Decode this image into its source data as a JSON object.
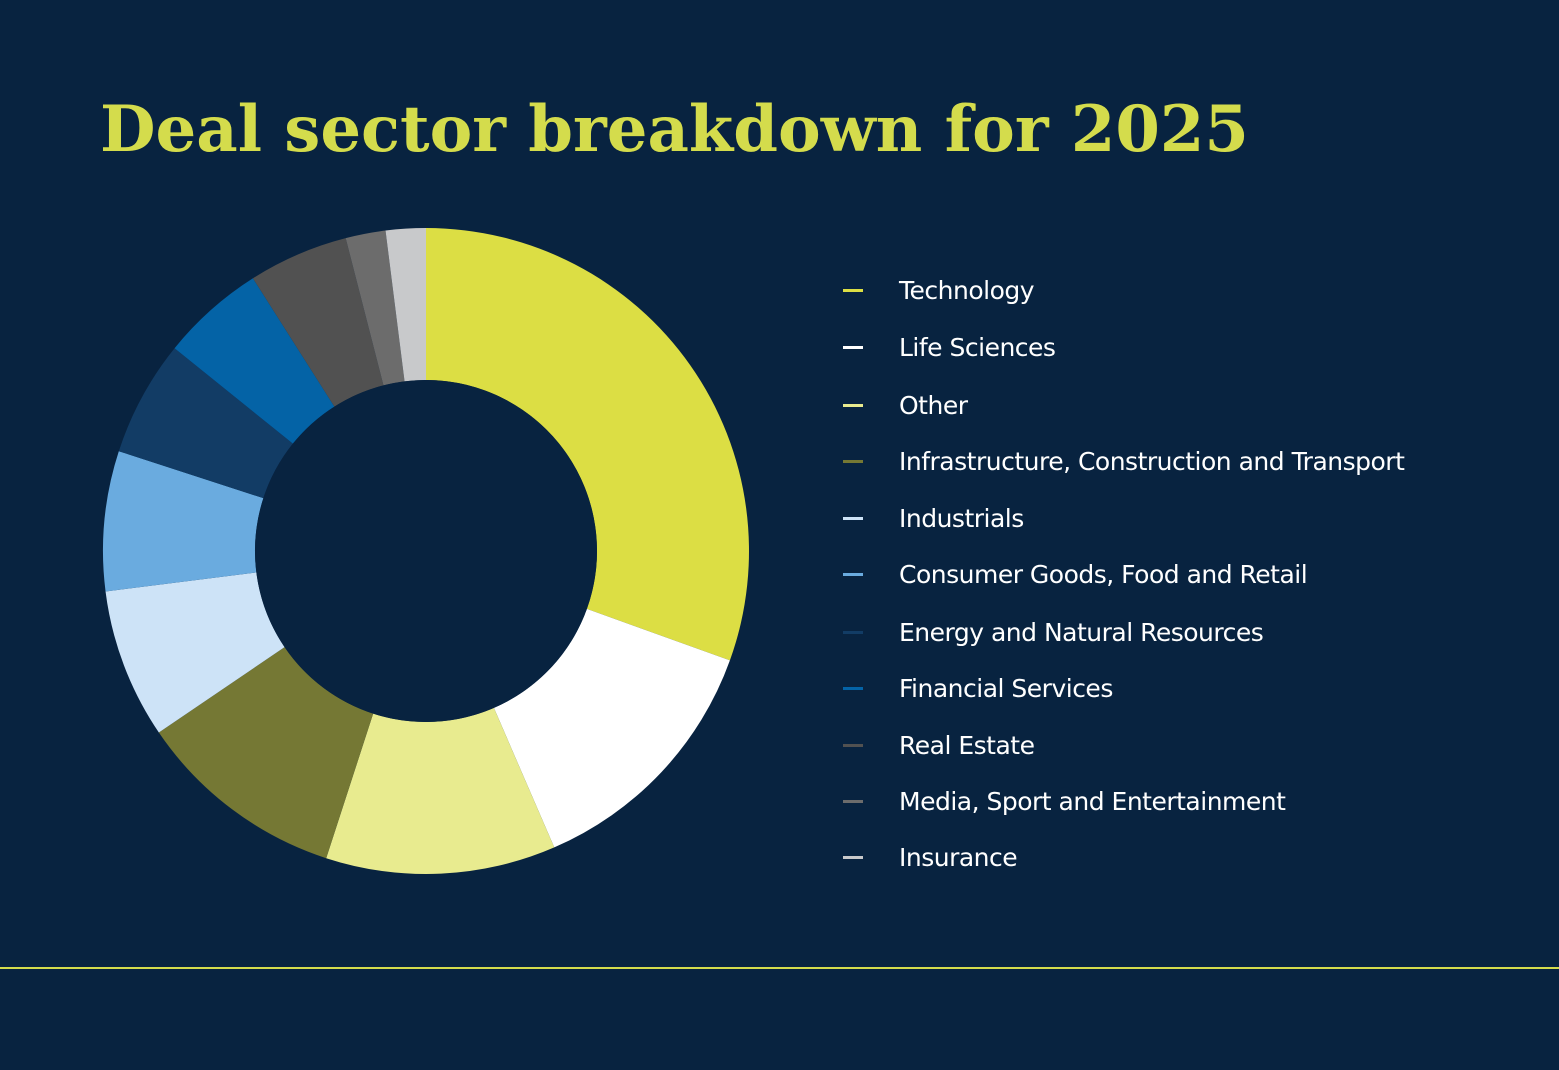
{
  "page": {
    "background": "#082340",
    "rule_color": "#d4dc4c"
  },
  "chart_data": {
    "type": "pie",
    "variant": "donut",
    "title": "Deal sector breakdown for 2025",
    "title_color": "#d4dc4c",
    "unit": "percent (estimated share of deals)",
    "legend_position": "right",
    "slices": [
      {
        "label": "Technology",
        "value": 30.5,
        "color": "#dcde44"
      },
      {
        "label": "Life Sciences",
        "value": 13.0,
        "color": "#ffffff"
      },
      {
        "label": "Other",
        "value": 11.5,
        "color": "#e8eb8f"
      },
      {
        "label": "Infrastructure, Construction and Transport",
        "value": 10.5,
        "color": "#757834"
      },
      {
        "label": "Industrials",
        "value": 7.5,
        "color": "#cde3f7"
      },
      {
        "label": "Consumer Goods, Food and Retail",
        "value": 7.0,
        "color": "#6aabdf"
      },
      {
        "label": "Energy and Natural Resources",
        "value": 5.8,
        "color": "#123c65"
      },
      {
        "label": "Financial Services",
        "value": 5.2,
        "color": "#0463a6"
      },
      {
        "label": "Real Estate",
        "value": 5.0,
        "color": "#515151"
      },
      {
        "label": "Media, Sport and Entertainment",
        "value": 2.0,
        "color": "#6c6c6c"
      },
      {
        "label": "Insurance",
        "value": 2.0,
        "color": "#c8c9cb"
      }
    ]
  }
}
